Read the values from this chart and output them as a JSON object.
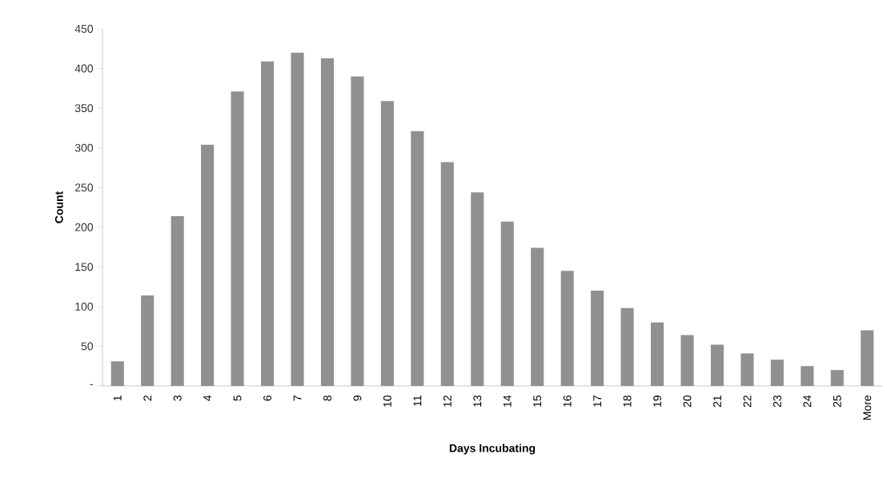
{
  "chart_data": {
    "type": "bar",
    "xlabel": "Days Incubating",
    "ylabel": "Count",
    "categories": [
      "1",
      "2",
      "3",
      "4",
      "5",
      "6",
      "7",
      "8",
      "9",
      "10",
      "11",
      "12",
      "13",
      "14",
      "15",
      "16",
      "17",
      "18",
      "19",
      "20",
      "21",
      "22",
      "23",
      "24",
      "25",
      "More"
    ],
    "values": [
      31,
      114,
      214,
      304,
      371,
      409,
      420,
      413,
      390,
      359,
      321,
      282,
      244,
      207,
      174,
      145,
      120,
      98,
      80,
      64,
      52,
      41,
      33,
      25,
      20,
      70
    ],
    "color": "#909090",
    "ylim": [
      0,
      450
    ],
    "yticks": [
      {
        "value": 0,
        "label": "-"
      },
      50,
      100,
      150,
      200,
      250,
      300,
      350,
      400,
      450
    ],
    "grid": false
  }
}
